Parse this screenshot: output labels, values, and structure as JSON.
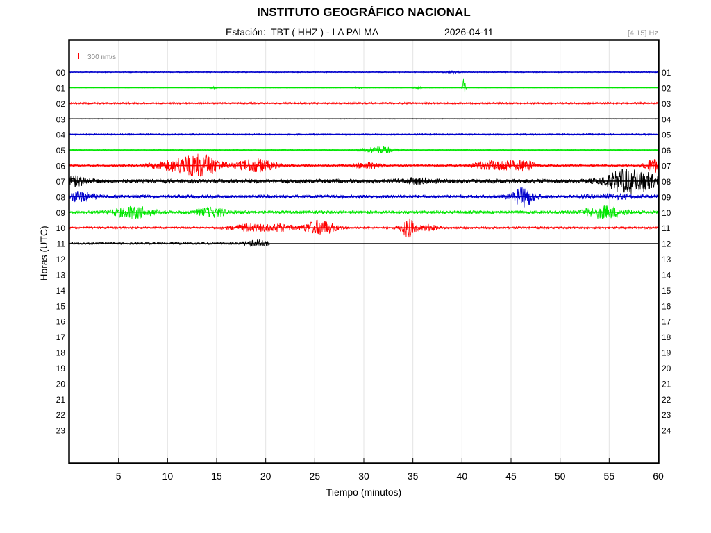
{
  "header": {
    "title": "INSTITUTO GEOGRÁFICO NACIONAL",
    "station": "Estación:  TBT ( HHZ ) - LA PALMA",
    "date": "2026-04-11",
    "filter": "[4 15] Hz"
  },
  "chart_data": {
    "type": "line",
    "title": "INSTITUTO GEOGRÁFICO NACIONAL",
    "xlabel": "Tiempo (minutos)",
    "ylabel": "Horas (UTC)",
    "xlim": [
      0,
      60
    ],
    "x_ticks": [
      5,
      10,
      15,
      20,
      25,
      30,
      35,
      40,
      45,
      50,
      55,
      60
    ],
    "left_labels": [
      "00",
      "01",
      "02",
      "03",
      "04",
      "05",
      "06",
      "07",
      "08",
      "09",
      "10",
      "11",
      "12",
      "13",
      "14",
      "15",
      "16",
      "17",
      "18",
      "19",
      "20",
      "21",
      "22",
      "23"
    ],
    "right_labels": [
      "01",
      "02",
      "03",
      "04",
      "05",
      "06",
      "07",
      "08",
      "09",
      "10",
      "11",
      "12",
      "13",
      "14",
      "15",
      "16",
      "17",
      "18",
      "19",
      "20",
      "21",
      "22",
      "23",
      "24"
    ],
    "grid": true,
    "scale_label": "300 nm/s",
    "scale_color": "#ff0000",
    "colors": [
      "#0000cc",
      "#00e600",
      "#ff0000",
      "#000000"
    ],
    "traces": [
      {
        "hour": 0,
        "end_min": 60,
        "noise": 0.8,
        "events": [
          [
            39,
            0.6,
            2
          ]
        ]
      },
      {
        "hour": 1,
        "end_min": 60,
        "noise": 0.5,
        "events": [
          [
            14.7,
            0.4,
            1.2
          ],
          [
            29.5,
            0.4,
            1.2
          ],
          [
            35.5,
            0.4,
            1.2
          ],
          [
            40.2,
            0.15,
            14
          ]
        ]
      },
      {
        "hour": 2,
        "end_min": 60,
        "noise": 1.3,
        "events": []
      },
      {
        "hour": 3,
        "end_min": 60,
        "noise": 0.5,
        "events": []
      },
      {
        "hour": 4,
        "end_min": 60,
        "noise": 1.2,
        "events": []
      },
      {
        "hour": 5,
        "end_min": 60,
        "noise": 0.8,
        "events": [
          [
            31.5,
            1.5,
            5
          ]
        ]
      },
      {
        "hour": 6,
        "end_min": 60,
        "noise": 1.6,
        "events": [
          [
            9.5,
            1.5,
            4
          ],
          [
            12,
            1.8,
            11
          ],
          [
            14,
            1.5,
            12
          ],
          [
            19,
            2,
            9
          ],
          [
            30.5,
            1.3,
            4
          ],
          [
            42.5,
            1.5,
            5
          ],
          [
            44.5,
            1.2,
            7
          ],
          [
            46.5,
            0.8,
            8
          ],
          [
            59.5,
            0.8,
            10
          ]
        ]
      },
      {
        "hour": 7,
        "end_min": 60,
        "noise": 2.8,
        "events": [
          [
            0.7,
            1.2,
            6
          ],
          [
            35.5,
            1.5,
            3
          ],
          [
            56.5,
            2,
            13
          ],
          [
            58.5,
            2,
            8
          ]
        ]
      },
      {
        "hour": 8,
        "end_min": 60,
        "noise": 2.6,
        "events": [
          [
            1,
            1.3,
            7
          ],
          [
            46.3,
            1.1,
            13
          ],
          [
            55.5,
            2.5,
            2
          ]
        ]
      },
      {
        "hour": 9,
        "end_min": 60,
        "noise": 2.2,
        "events": [
          [
            6.5,
            2,
            8
          ],
          [
            14.5,
            1.6,
            6
          ],
          [
            54.5,
            2,
            8
          ]
        ]
      },
      {
        "hour": 10,
        "end_min": 60,
        "noise": 1.6,
        "events": [
          [
            18.5,
            2,
            5
          ],
          [
            21.5,
            1.2,
            5
          ],
          [
            25.5,
            1.6,
            10
          ],
          [
            34.5,
            0.7,
            13
          ],
          [
            36.5,
            1,
            4
          ]
        ]
      },
      {
        "hour": 11,
        "end_min": 20.4,
        "noise": 1.5,
        "events": [
          [
            19,
            1.3,
            4
          ]
        ]
      }
    ]
  }
}
